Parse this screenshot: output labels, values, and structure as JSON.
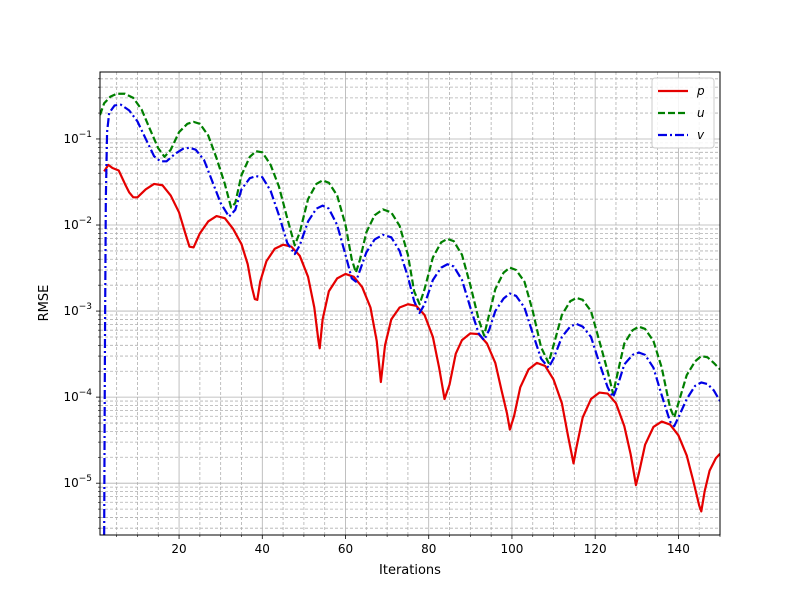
{
  "chart_data": {
    "type": "line",
    "title": "",
    "xlabel": "Iterations",
    "ylabel": "RMSE",
    "xlim": [
      1,
      150
    ],
    "ylim": [
      2.5e-06,
      0.6
    ],
    "yscale": "log",
    "grid": {
      "major": true,
      "minor": true
    },
    "legend_position": "top-right",
    "x_ticks": [
      20,
      40,
      60,
      80,
      100,
      120,
      140
    ],
    "y_ticks": [
      {
        "value": 1e-05,
        "base": "10",
        "exp": "−5"
      },
      {
        "value": 0.0001,
        "base": "10",
        "exp": "−4"
      },
      {
        "value": 0.001,
        "base": "10",
        "exp": "−3"
      },
      {
        "value": 0.01,
        "base": "10",
        "exp": "−2"
      },
      {
        "value": 0.1,
        "base": "10",
        "exp": "−1"
      }
    ],
    "series": [
      {
        "name": "p",
        "color": "#e50000",
        "style": "solid",
        "points": [
          [
            2.0,
            0.042
          ],
          [
            3.0,
            0.05
          ],
          [
            4.0,
            0.046
          ],
          [
            5.5,
            0.043
          ],
          [
            7.0,
            0.03
          ],
          [
            8.0,
            0.024
          ],
          [
            9.0,
            0.021
          ],
          [
            10.0,
            0.021
          ],
          [
            12.0,
            0.026
          ],
          [
            14.0,
            0.03
          ],
          [
            16.0,
            0.029
          ],
          [
            18.0,
            0.022
          ],
          [
            20.0,
            0.014
          ],
          [
            21.5,
            0.008
          ],
          [
            22.5,
            0.0056
          ],
          [
            23.5,
            0.0055
          ],
          [
            25.0,
            0.008
          ],
          [
            27.0,
            0.011
          ],
          [
            29.0,
            0.0127
          ],
          [
            31.0,
            0.012
          ],
          [
            33.0,
            0.009
          ],
          [
            35.0,
            0.006
          ],
          [
            36.5,
            0.0035
          ],
          [
            37.5,
            0.0019
          ],
          [
            38.2,
            0.00138
          ],
          [
            38.8,
            0.00135
          ],
          [
            39.5,
            0.0022
          ],
          [
            41.0,
            0.0038
          ],
          [
            43.0,
            0.0053
          ],
          [
            45.0,
            0.0059
          ],
          [
            47.0,
            0.0056
          ],
          [
            49.0,
            0.0044
          ],
          [
            51.0,
            0.0025
          ],
          [
            52.5,
            0.0011
          ],
          [
            53.5,
            0.00045
          ],
          [
            53.8,
            0.00037
          ],
          [
            54.5,
            0.0008
          ],
          [
            56.0,
            0.0017
          ],
          [
            58.0,
            0.0024
          ],
          [
            60.0,
            0.0027
          ],
          [
            62.0,
            0.0025
          ],
          [
            64.0,
            0.0019
          ],
          [
            66.0,
            0.0011
          ],
          [
            67.5,
            0.00045
          ],
          [
            68.5,
            0.00015
          ],
          [
            69.5,
            0.0004
          ],
          [
            71.0,
            0.0008
          ],
          [
            73.0,
            0.0011
          ],
          [
            75.0,
            0.0012
          ],
          [
            77.0,
            0.00115
          ],
          [
            79.0,
            0.0009
          ],
          [
            81.0,
            0.0005
          ],
          [
            82.5,
            0.00022
          ],
          [
            83.8,
            9.5e-05
          ],
          [
            85.0,
            0.00014
          ],
          [
            86.5,
            0.00032
          ],
          [
            88.0,
            0.00046
          ],
          [
            90.0,
            0.00055
          ],
          [
            92.0,
            0.00054
          ],
          [
            94.0,
            0.00042
          ],
          [
            96.0,
            0.00025
          ],
          [
            97.5,
            0.00012
          ],
          [
            98.8,
            6.5e-05
          ],
          [
            99.5,
            4.2e-05
          ],
          [
            100.5,
            6e-05
          ],
          [
            102.0,
            0.00013
          ],
          [
            104.0,
            0.00021
          ],
          [
            106.0,
            0.00025
          ],
          [
            108.0,
            0.00023
          ],
          [
            110.0,
            0.00016
          ],
          [
            112.0,
            8.5e-05
          ],
          [
            113.5,
            3.5e-05
          ],
          [
            114.8,
            1.7e-05
          ],
          [
            115.5,
            2.6e-05
          ],
          [
            117.0,
            5.8e-05
          ],
          [
            119.0,
            9.5e-05
          ],
          [
            121.0,
            0.000113
          ],
          [
            123.0,
            0.00011
          ],
          [
            125.0,
            8.5e-05
          ],
          [
            127.0,
            4.6e-05
          ],
          [
            128.5,
            2.2e-05
          ],
          [
            129.8,
            9.5e-06
          ],
          [
            130.5,
            1.3e-05
          ],
          [
            132.0,
            2.8e-05
          ],
          [
            134.0,
            4.5e-05
          ],
          [
            136.0,
            5.2e-05
          ],
          [
            138.0,
            4.8e-05
          ],
          [
            140.0,
            3.6e-05
          ],
          [
            142.0,
            2.1e-05
          ],
          [
            143.5,
            1.1e-05
          ],
          [
            145.0,
            5.5e-06
          ],
          [
            145.5,
            4.7e-06
          ],
          [
            146.3,
            8e-06
          ],
          [
            147.5,
            1.4e-05
          ],
          [
            149.0,
            1.95e-05
          ],
          [
            150.0,
            2.2e-05
          ]
        ]
      },
      {
        "name": "u",
        "color": "#007f00",
        "style": "dashed",
        "points": [
          [
            1.0,
            0.19
          ],
          [
            2.0,
            0.26
          ],
          [
            3.5,
            0.31
          ],
          [
            5.0,
            0.335
          ],
          [
            7.0,
            0.335
          ],
          [
            9.0,
            0.3
          ],
          [
            11.0,
            0.22
          ],
          [
            13.0,
            0.13
          ],
          [
            15.0,
            0.078
          ],
          [
            16.5,
            0.062
          ],
          [
            18.0,
            0.075
          ],
          [
            20.0,
            0.12
          ],
          [
            22.0,
            0.15
          ],
          [
            23.5,
            0.158
          ],
          [
            25.0,
            0.15
          ],
          [
            27.0,
            0.11
          ],
          [
            29.0,
            0.06
          ],
          [
            31.0,
            0.03
          ],
          [
            32.5,
            0.016
          ],
          [
            33.5,
            0.018
          ],
          [
            35.0,
            0.038
          ],
          [
            37.0,
            0.062
          ],
          [
            38.5,
            0.072
          ],
          [
            40.0,
            0.07
          ],
          [
            42.0,
            0.05
          ],
          [
            44.0,
            0.028
          ],
          [
            46.0,
            0.012
          ],
          [
            47.8,
            0.0058
          ],
          [
            49.0,
            0.0082
          ],
          [
            51.0,
            0.02
          ],
          [
            53.0,
            0.03
          ],
          [
            54.5,
            0.033
          ],
          [
            56.0,
            0.031
          ],
          [
            58.0,
            0.022
          ],
          [
            60.0,
            0.01
          ],
          [
            61.5,
            0.004
          ],
          [
            62.5,
            0.0028
          ],
          [
            63.5,
            0.004
          ],
          [
            65.0,
            0.0082
          ],
          [
            67.0,
            0.013
          ],
          [
            69.0,
            0.0152
          ],
          [
            71.0,
            0.014
          ],
          [
            73.0,
            0.0098
          ],
          [
            75.0,
            0.0045
          ],
          [
            76.5,
            0.0017
          ],
          [
            77.8,
            0.0012
          ],
          [
            79.0,
            0.0018
          ],
          [
            81.0,
            0.0042
          ],
          [
            83.0,
            0.0063
          ],
          [
            84.5,
            0.0069
          ],
          [
            86.0,
            0.0065
          ],
          [
            88.0,
            0.0045
          ],
          [
            90.0,
            0.002
          ],
          [
            92.0,
            0.0008
          ],
          [
            93.3,
            0.00052
          ],
          [
            94.5,
            0.0009
          ],
          [
            96.0,
            0.0018
          ],
          [
            98.0,
            0.0028
          ],
          [
            99.5,
            0.0032
          ],
          [
            101.0,
            0.003
          ],
          [
            103.0,
            0.0022
          ],
          [
            105.0,
            0.001
          ],
          [
            107.0,
            0.00038
          ],
          [
            108.8,
            0.00025
          ],
          [
            110.0,
            0.0004
          ],
          [
            112.0,
            0.0009
          ],
          [
            114.0,
            0.0013
          ],
          [
            115.5,
            0.00142
          ],
          [
            117.0,
            0.00135
          ],
          [
            119.0,
            0.001
          ],
          [
            121.0,
            0.00045
          ],
          [
            123.0,
            0.0002
          ],
          [
            124.3,
            0.00011
          ],
          [
            125.5,
            0.0002
          ],
          [
            127.0,
            0.00042
          ],
          [
            129.0,
            0.0006
          ],
          [
            130.5,
            0.00066
          ],
          [
            132.0,
            0.00062
          ],
          [
            134.0,
            0.00045
          ],
          [
            136.0,
            0.00022
          ],
          [
            138.0,
            7.5e-05
          ],
          [
            139.0,
            5.8e-05
          ],
          [
            140.0,
            8.5e-05
          ],
          [
            142.0,
            0.00018
          ],
          [
            144.0,
            0.00026
          ],
          [
            145.5,
            0.0003
          ],
          [
            147.0,
            0.00029
          ],
          [
            148.5,
            0.00025
          ],
          [
            150.0,
            0.00021
          ]
        ]
      },
      {
        "name": "v",
        "color": "#0000e5",
        "style": "dashdot",
        "points": [
          [
            2.0,
            2.5e-06
          ],
          [
            2.2,
            0.0005
          ],
          [
            2.4,
            0.02
          ],
          [
            2.7,
            0.12
          ],
          [
            3.2,
            0.2
          ],
          [
            4.5,
            0.245
          ],
          [
            6.0,
            0.25
          ],
          [
            8.0,
            0.215
          ],
          [
            10.0,
            0.16
          ],
          [
            12.0,
            0.1
          ],
          [
            14.0,
            0.063
          ],
          [
            15.5,
            0.055
          ],
          [
            17.0,
            0.055
          ],
          [
            19.0,
            0.067
          ],
          [
            21.0,
            0.077
          ],
          [
            22.5,
            0.079
          ],
          [
            24.0,
            0.075
          ],
          [
            26.0,
            0.057
          ],
          [
            28.0,
            0.032
          ],
          [
            30.0,
            0.018
          ],
          [
            32.0,
            0.0125
          ],
          [
            33.5,
            0.015
          ],
          [
            35.0,
            0.026
          ],
          [
            37.0,
            0.035
          ],
          [
            38.5,
            0.037
          ],
          [
            40.0,
            0.036
          ],
          [
            42.0,
            0.025
          ],
          [
            44.0,
            0.013
          ],
          [
            46.0,
            0.0062
          ],
          [
            47.8,
            0.0046
          ],
          [
            49.0,
            0.0058
          ],
          [
            51.0,
            0.011
          ],
          [
            53.0,
            0.0155
          ],
          [
            54.5,
            0.0168
          ],
          [
            56.0,
            0.0155
          ],
          [
            58.0,
            0.01
          ],
          [
            60.0,
            0.0045
          ],
          [
            61.5,
            0.0024
          ],
          [
            62.5,
            0.0022
          ],
          [
            63.5,
            0.003
          ],
          [
            65.0,
            0.0048
          ],
          [
            67.0,
            0.0068
          ],
          [
            69.0,
            0.0077
          ],
          [
            71.0,
            0.0072
          ],
          [
            73.0,
            0.005
          ],
          [
            75.0,
            0.0025
          ],
          [
            76.5,
            0.0013
          ],
          [
            77.8,
            0.00095
          ],
          [
            79.0,
            0.0012
          ],
          [
            81.0,
            0.0023
          ],
          [
            83.0,
            0.0032
          ],
          [
            84.5,
            0.0035
          ],
          [
            86.0,
            0.0033
          ],
          [
            88.0,
            0.0023
          ],
          [
            90.0,
            0.0011
          ],
          [
            92.0,
            0.00055
          ],
          [
            93.3,
            0.00046
          ],
          [
            94.5,
            0.0006
          ],
          [
            96.0,
            0.001
          ],
          [
            98.0,
            0.0014
          ],
          [
            99.5,
            0.0016
          ],
          [
            101.0,
            0.0015
          ],
          [
            103.0,
            0.0011
          ],
          [
            105.0,
            0.00055
          ],
          [
            107.0,
            0.00028
          ],
          [
            108.8,
            0.00022
          ],
          [
            110.0,
            0.00028
          ],
          [
            112.0,
            0.0005
          ],
          [
            114.0,
            0.00066
          ],
          [
            115.5,
            0.00071
          ],
          [
            117.0,
            0.00066
          ],
          [
            119.0,
            0.0005
          ],
          [
            121.0,
            0.00025
          ],
          [
            123.0,
            0.00013
          ],
          [
            124.3,
            0.0001
          ],
          [
            125.5,
            0.00014
          ],
          [
            127.0,
            0.00024
          ],
          [
            129.0,
            0.00031
          ],
          [
            130.5,
            0.00033
          ],
          [
            132.0,
            0.00031
          ],
          [
            134.0,
            0.00022
          ],
          [
            136.0,
            0.000105
          ],
          [
            138.0,
            5.2e-05
          ],
          [
            139.0,
            4.6e-05
          ],
          [
            140.0,
            5.8e-05
          ],
          [
            142.0,
            9.5e-05
          ],
          [
            144.0,
            0.000135
          ],
          [
            145.5,
            0.000148
          ],
          [
            147.0,
            0.000142
          ],
          [
            148.5,
            0.00012
          ],
          [
            150.0,
            9e-05
          ]
        ]
      }
    ]
  }
}
